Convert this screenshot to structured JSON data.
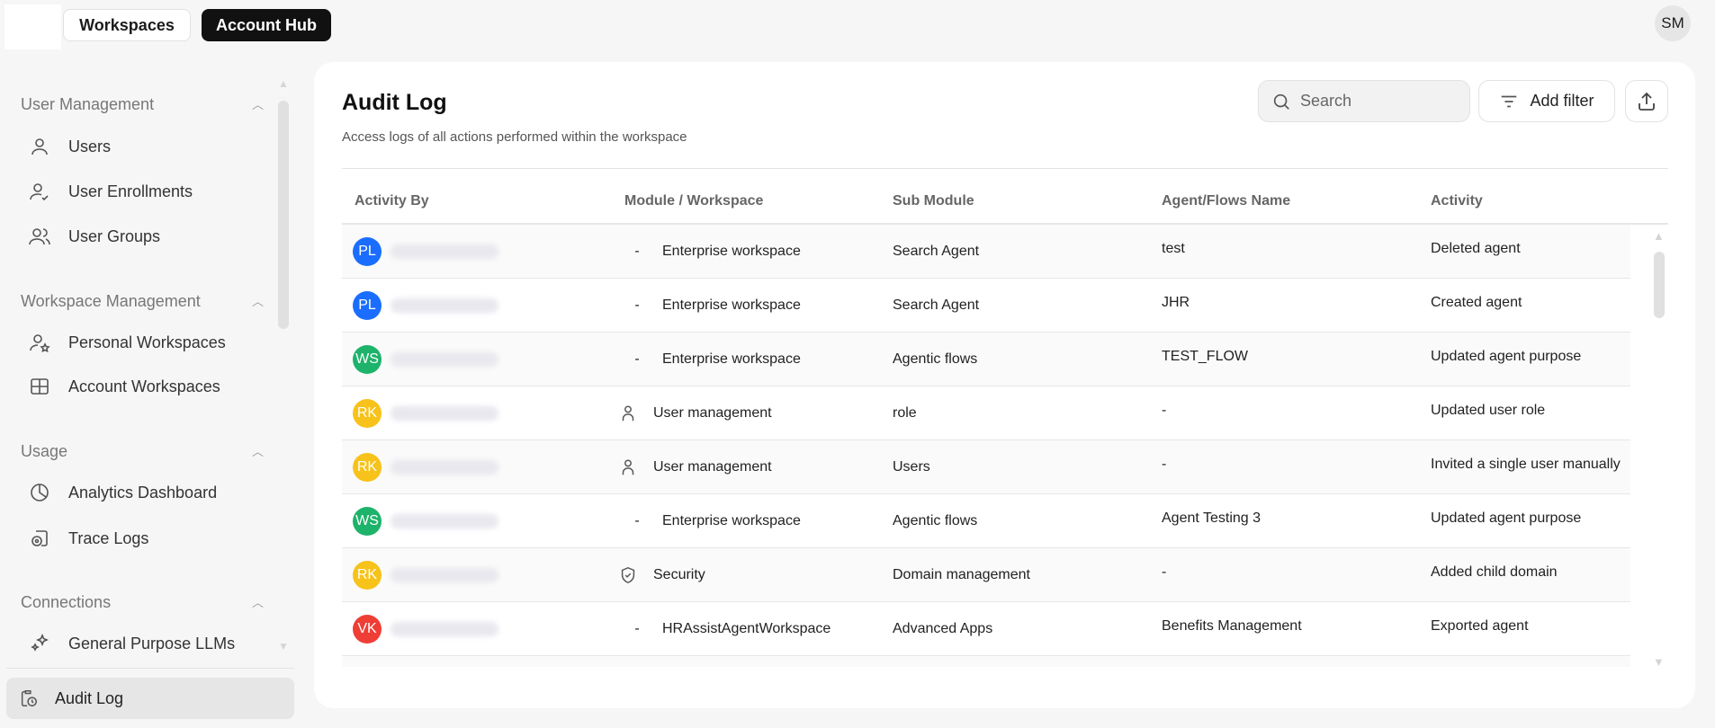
{
  "topbar": {
    "workspaces_label": "Workspaces",
    "account_hub_label": "Account Hub",
    "user_initials": "SM"
  },
  "sidebar": {
    "sections": [
      {
        "title": "User Management",
        "items": [
          {
            "label": "Users",
            "icon": "user-icon"
          },
          {
            "label": "User Enrollments",
            "icon": "user-check-icon"
          },
          {
            "label": "User Groups",
            "icon": "users-icon"
          }
        ]
      },
      {
        "title": "Workspace Management",
        "items": [
          {
            "label": "Personal Workspaces",
            "icon": "user-star-icon"
          },
          {
            "label": "Account Workspaces",
            "icon": "grid-icon"
          }
        ]
      },
      {
        "title": "Usage",
        "items": [
          {
            "label": "Analytics Dashboard",
            "icon": "pie-chart-icon"
          },
          {
            "label": "Trace Logs",
            "icon": "trace-icon"
          }
        ]
      },
      {
        "title": "Connections",
        "items": [
          {
            "label": "General Purpose LLMs",
            "icon": "sparkles-icon"
          }
        ]
      }
    ],
    "active_item": {
      "label": "Audit Log",
      "icon": "audit-clock-icon"
    }
  },
  "main": {
    "title": "Audit Log",
    "subtitle": "Access logs of all actions performed within the workspace",
    "search_placeholder": "Search",
    "add_filter_label": "Add filter",
    "columns": [
      "Activity By",
      "Module / Workspace",
      "Sub Module",
      "Agent/Flows Name",
      "Activity"
    ],
    "rows": [
      {
        "initials": "PL",
        "color": "#1a6dff",
        "module_icon": "dash",
        "module": "Enterprise workspace",
        "sub": "Search Agent",
        "agent": "test",
        "activity": "Deleted agent"
      },
      {
        "initials": "PL",
        "color": "#1a6dff",
        "module_icon": "dash",
        "module": "Enterprise workspace",
        "sub": "Search Agent",
        "agent": "JHR",
        "activity": "Created agent"
      },
      {
        "initials": "WS",
        "color": "#1db36a",
        "module_icon": "dash",
        "module": "Enterprise workspace",
        "sub": "Agentic flows",
        "agent": "TEST_FLOW",
        "activity": "Updated agent purpose"
      },
      {
        "initials": "RK",
        "color": "#f7c21a",
        "module_icon": "user",
        "module": "User management",
        "sub": "role",
        "agent": "-",
        "activity": "Updated user role"
      },
      {
        "initials": "RK",
        "color": "#f7c21a",
        "module_icon": "user",
        "module": "User management",
        "sub": "Users",
        "agent": "-",
        "activity": "Invited a single user manually"
      },
      {
        "initials": "WS",
        "color": "#1db36a",
        "module_icon": "dash",
        "module": "Enterprise workspace",
        "sub": "Agentic flows",
        "agent": "Agent Testing 3",
        "activity": "Updated agent purpose"
      },
      {
        "initials": "RK",
        "color": "#f7c21a",
        "module_icon": "shield",
        "module": "Security",
        "sub": "Domain management",
        "agent": "-",
        "activity": "Added child domain"
      },
      {
        "initials": "VK",
        "color": "#ef3e36",
        "module_icon": "dash",
        "module": "HRAssistAgentWorkspace",
        "sub": "Advanced Apps",
        "agent": "Benefits Management",
        "activity": "Exported agent"
      },
      {
        "initials": "",
        "color": "#1a6dff",
        "module_icon": "",
        "module": "",
        "sub": "",
        "agent": "",
        "activity": ""
      }
    ]
  }
}
